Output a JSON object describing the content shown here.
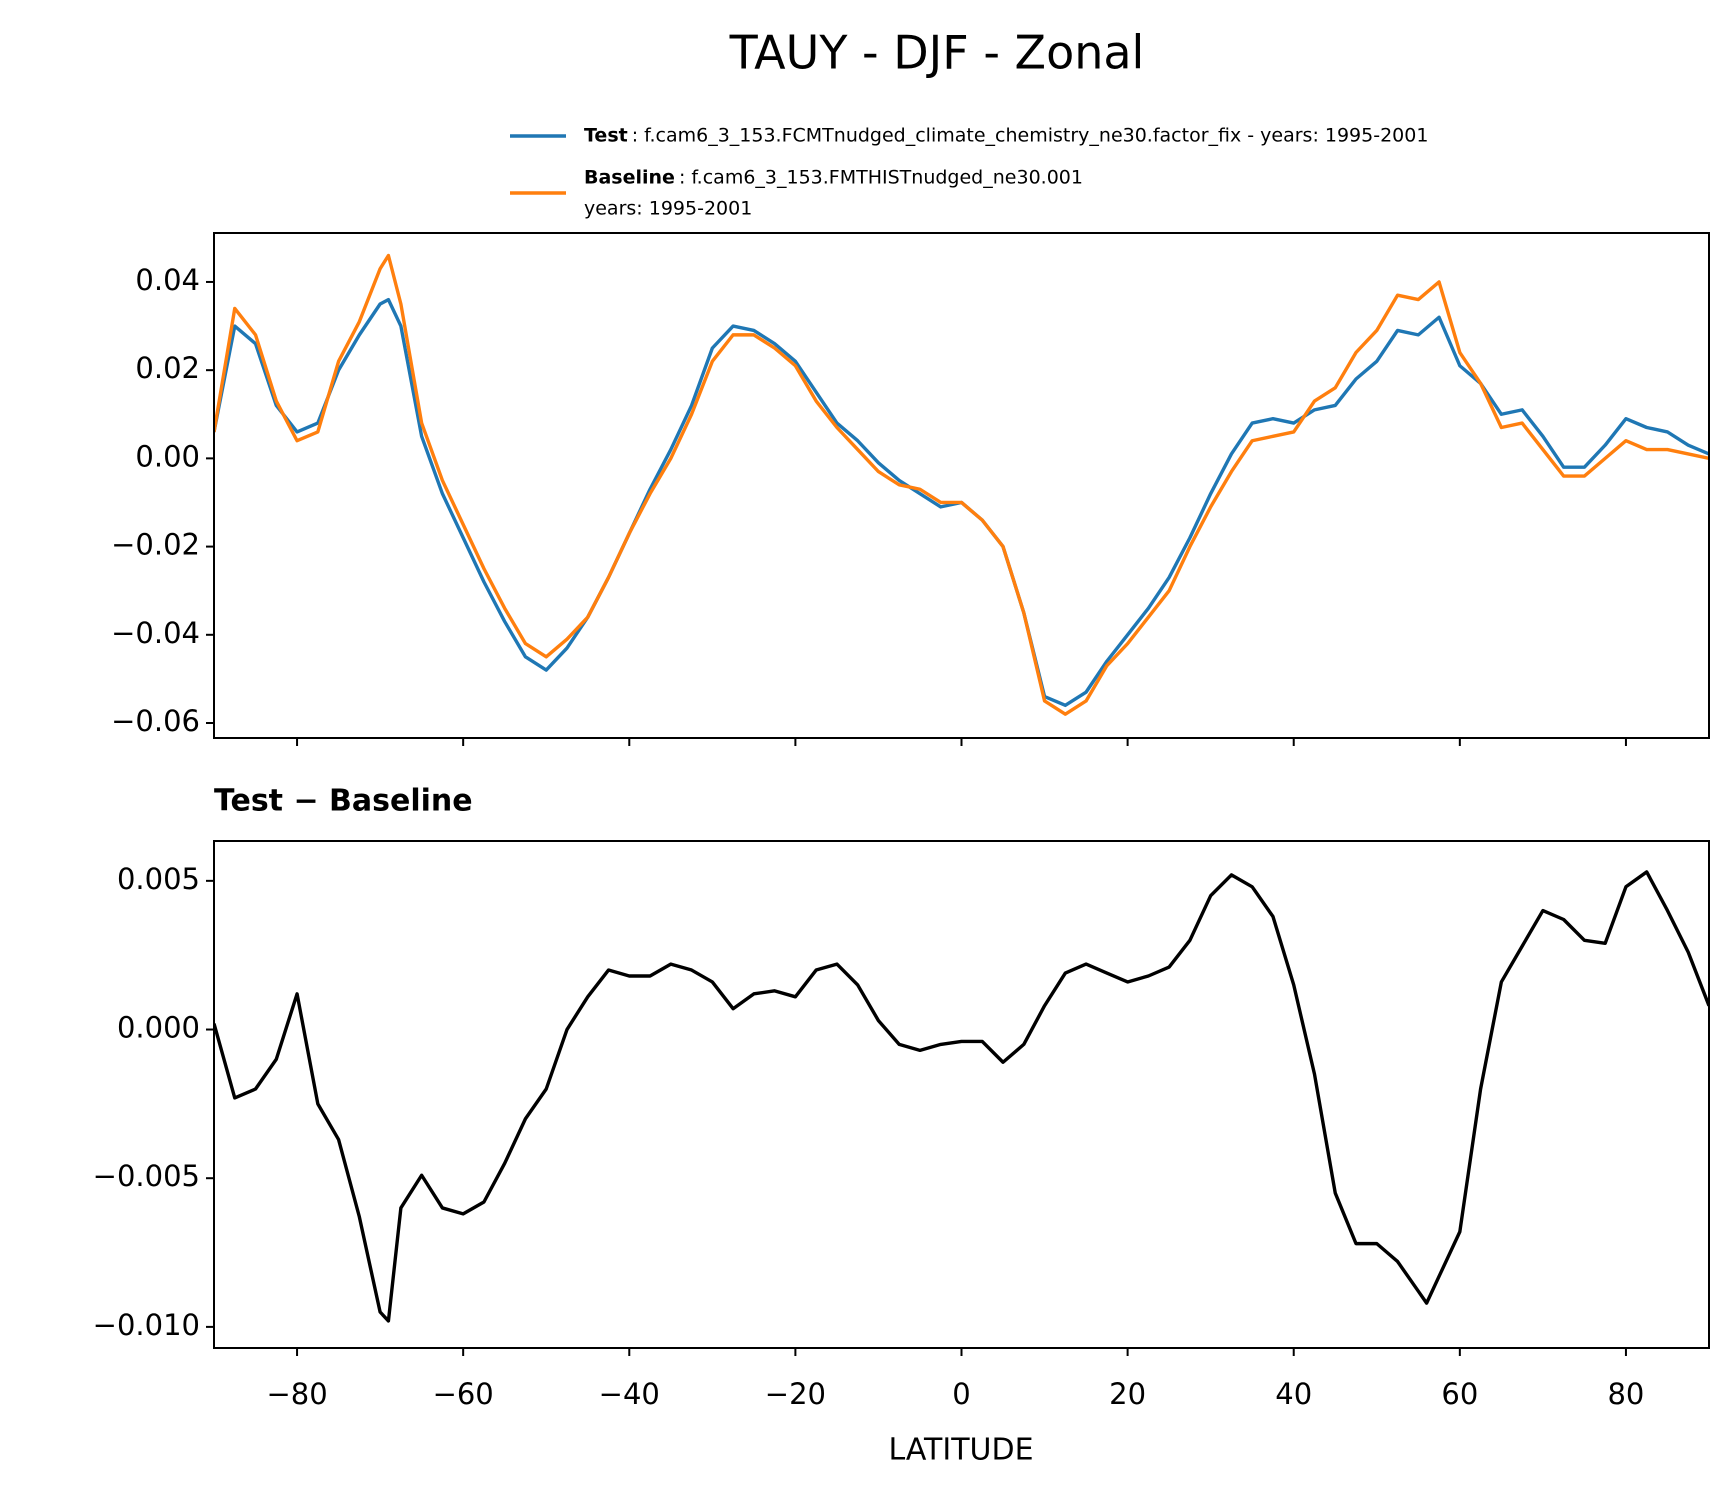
{
  "chart_data": [
    {
      "type": "line",
      "title": "TAUY - DJF - Zonal",
      "x": [
        -90,
        -87.5,
        -85,
        -82.5,
        -80,
        -77.5,
        -75,
        -72.5,
        -70,
        -69,
        -67.5,
        -65,
        -62.5,
        -60,
        -57.5,
        -55,
        -52.5,
        -50,
        -47.5,
        -45,
        -42.5,
        -40,
        -37.5,
        -35,
        -32.5,
        -30,
        -27.5,
        -25,
        -22.5,
        -20,
        -17.5,
        -15,
        -12.5,
        -10,
        -7.5,
        -5,
        -2.5,
        0,
        2.5,
        5,
        7.5,
        10,
        12.5,
        15,
        17.5,
        20,
        22.5,
        25,
        27.5,
        30,
        32.5,
        35,
        37.5,
        40,
        42.5,
        45,
        47.5,
        50,
        52.5,
        55,
        57.5,
        60,
        62.5,
        65,
        67.5,
        70,
        72.5,
        75,
        77.5,
        80,
        82.5,
        85,
        87.5,
        90
      ],
      "series": [
        {
          "name": "Test",
          "description": [
            ": f.cam6_3_153.FCMTnudged_climate_chemistry_ne30.factor_fix - years: 1995-2001"
          ],
          "color": "#1f77b4",
          "values": [
            0.006,
            0.03,
            0.026,
            0.012,
            0.006,
            0.008,
            0.02,
            0.028,
            0.035,
            0.036,
            0.03,
            0.005,
            -0.008,
            -0.018,
            -0.028,
            -0.037,
            -0.045,
            -0.048,
            -0.043,
            -0.036,
            -0.027,
            -0.017,
            -0.007,
            0.002,
            0.012,
            0.025,
            0.03,
            0.029,
            0.026,
            0.022,
            0.015,
            0.008,
            0.004,
            -0.001,
            -0.005,
            -0.008,
            -0.011,
            -0.01,
            -0.014,
            -0.02,
            -0.035,
            -0.054,
            -0.056,
            -0.053,
            -0.046,
            -0.04,
            -0.034,
            -0.027,
            -0.018,
            -0.008,
            0.001,
            0.008,
            0.009,
            0.008,
            0.011,
            0.012,
            0.018,
            0.022,
            0.029,
            0.028,
            0.032,
            0.021,
            0.017,
            0.01,
            0.011,
            0.005,
            -0.002,
            -0.002,
            0.003,
            0.009,
            0.007,
            0.006,
            0.003,
            0.001
          ]
        },
        {
          "name": "Baseline",
          "description": [
            ": f.cam6_3_153.FMTHISTnudged_ne30.001",
            "years: 1995-2001"
          ],
          "color": "#ff7f0e",
          "values": [
            0.006,
            0.034,
            0.028,
            0.013,
            0.004,
            0.006,
            0.022,
            0.031,
            0.043,
            0.046,
            0.035,
            0.008,
            -0.005,
            -0.015,
            -0.025,
            -0.034,
            -0.042,
            -0.045,
            -0.041,
            -0.036,
            -0.027,
            -0.017,
            -0.008,
            0.0,
            0.01,
            0.022,
            0.028,
            0.028,
            0.025,
            0.021,
            0.013,
            0.007,
            0.002,
            -0.003,
            -0.006,
            -0.007,
            -0.01,
            -0.01,
            -0.014,
            -0.02,
            -0.035,
            -0.055,
            -0.058,
            -0.055,
            -0.047,
            -0.042,
            -0.036,
            -0.03,
            -0.02,
            -0.011,
            -0.003,
            0.004,
            0.005,
            0.006,
            0.013,
            0.016,
            0.024,
            0.029,
            0.037,
            0.036,
            0.04,
            0.024,
            0.017,
            0.007,
            0.008,
            0.002,
            -0.004,
            -0.004,
            0.0,
            0.004,
            0.002,
            0.002,
            0.001,
            0.0
          ]
        }
      ],
      "xlim": [
        -90,
        90
      ],
      "xticks": [
        -80,
        -60,
        -40,
        -20,
        0,
        20,
        40,
        60,
        80
      ],
      "ylim": [
        -0.0634,
        0.0511
      ],
      "yticks": [
        {
          "value": 0.04,
          "label": "0.04"
        },
        {
          "value": 0.02,
          "label": "0.02"
        },
        {
          "value": 0,
          "label": "0.00"
        },
        {
          "value": -0.02,
          "label": "−0.02"
        },
        {
          "value": -0.04,
          "label": "−0.04"
        },
        {
          "value": -0.06,
          "label": "−0.06"
        }
      ]
    },
    {
      "type": "line",
      "title": "Test − Baseline",
      "x_label": "LATITUDE",
      "x": [
        -90,
        -87.5,
        -85,
        -82.5,
        -80,
        -77.5,
        -75,
        -72.5,
        -70,
        -69,
        -67.5,
        -65,
        -62.5,
        -60,
        -57.5,
        -55,
        -52.5,
        -50,
        -47.5,
        -45,
        -42.5,
        -40,
        -37.5,
        -35,
        -32.5,
        -30,
        -27.5,
        -25,
        -22.5,
        -20,
        -17.5,
        -15,
        -12.5,
        -10,
        -7.5,
        -5,
        -2.5,
        0,
        2.5,
        5,
        7.5,
        10,
        12.5,
        15,
        17.5,
        20,
        22.5,
        25,
        27.5,
        30,
        32.5,
        35,
        37.5,
        40,
        42.5,
        45,
        47.5,
        50,
        52.5,
        55,
        56,
        57.5,
        60,
        62.5,
        65,
        67.5,
        70,
        72.5,
        75,
        77.5,
        80,
        82.5,
        85,
        87.5,
        90
      ],
      "series": [
        {
          "color": "#000000",
          "values": [
            0.0002,
            -0.0023,
            -0.002,
            -0.001,
            0.0012,
            -0.0025,
            -0.0037,
            -0.0063,
            -0.0095,
            -0.0098,
            -0.006,
            -0.0049,
            -0.006,
            -0.0062,
            -0.0058,
            -0.0045,
            -0.003,
            -0.002,
            0.0,
            0.0011,
            0.002,
            0.0018,
            0.0018,
            0.0022,
            0.002,
            0.0016,
            0.0007,
            0.0012,
            0.0013,
            0.0011,
            0.002,
            0.0022,
            0.0015,
            0.0003,
            -0.0005,
            -0.0007,
            -0.0005,
            -0.0004,
            -0.0004,
            -0.0011,
            -0.0005,
            0.0008,
            0.0019,
            0.0022,
            0.0019,
            0.0016,
            0.0018,
            0.0021,
            0.003,
            0.0045,
            0.0052,
            0.0048,
            0.0038,
            0.0015,
            -0.0015,
            -0.0055,
            -0.0072,
            -0.0072,
            -0.0078,
            -0.0088,
            -0.0092,
            -0.0083,
            -0.0068,
            -0.002,
            0.0016,
            0.0028,
            0.004,
            0.0037,
            0.003,
            0.0029,
            0.0048,
            0.0053,
            0.004,
            0.0026,
            0.0008
          ]
        }
      ],
      "xlim": [
        -90,
        90
      ],
      "xticks": [
        {
          "value": -80,
          "label": "−80"
        },
        {
          "value": -60,
          "label": "−60"
        },
        {
          "value": -40,
          "label": "−40"
        },
        {
          "value": -20,
          "label": "−20"
        },
        0,
        20,
        40,
        60,
        80
      ],
      "ylim": [
        -0.01071,
        0.00634
      ],
      "yticks": [
        {
          "value": 0.005,
          "label": "0.005"
        },
        {
          "value": 0,
          "label": "0.000"
        },
        {
          "value": -0.005,
          "label": "−0.005"
        },
        {
          "value": -0.01,
          "label": "−0.010"
        }
      ]
    }
  ]
}
